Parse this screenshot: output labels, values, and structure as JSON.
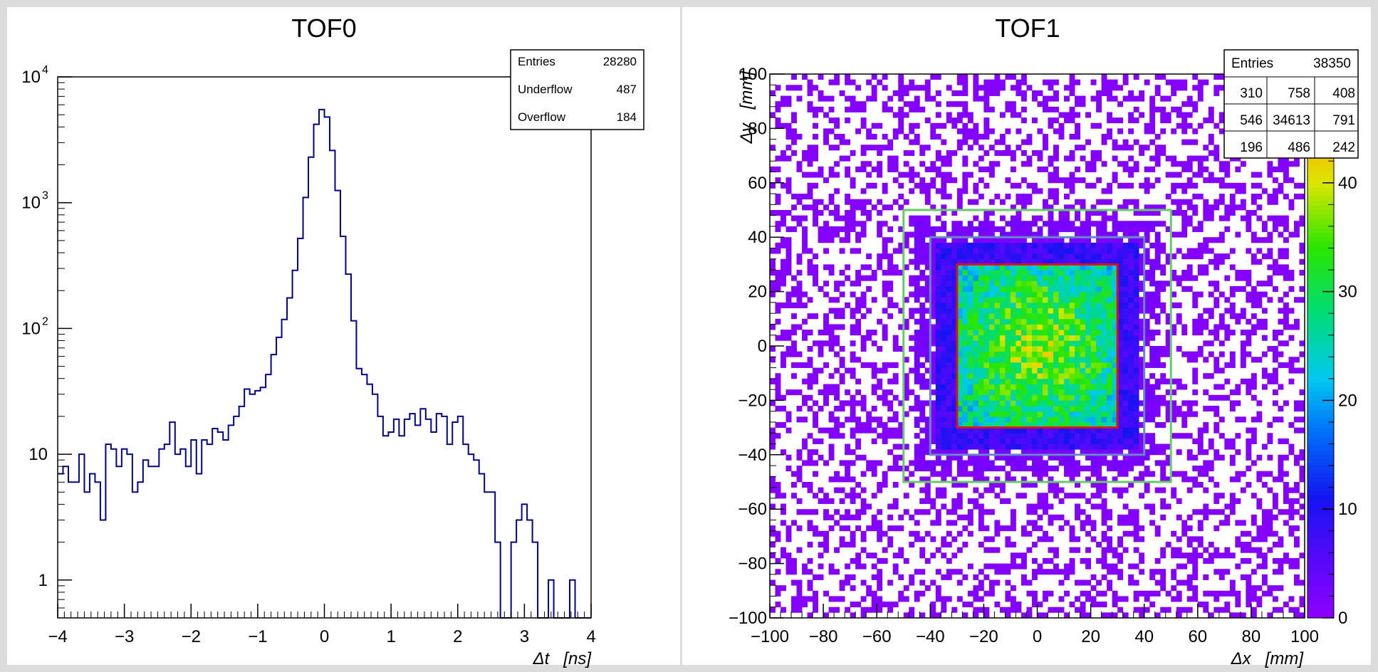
{
  "chart_data": [
    {
      "type": "histogram",
      "title": "TOF0",
      "xlabel": "Δt   [ns]",
      "ylabel": "",
      "xlim": [
        -4,
        4
      ],
      "ylim": [
        0.5,
        10000
      ],
      "yscale": "log",
      "xticks": [
        "−4",
        "−3",
        "−2",
        "−1",
        "0",
        "1",
        "2",
        "3",
        "4"
      ],
      "yticks": [
        {
          "value": 1,
          "label": "1"
        },
        {
          "value": 10,
          "label": "10"
        },
        {
          "value": 100,
          "label": "10",
          "exp": "2"
        },
        {
          "value": 1000,
          "label": "10",
          "exp": "3"
        },
        {
          "value": 10000,
          "label": "10",
          "exp": "4"
        }
      ],
      "bin_edges_start": -4,
      "bin_width": 0.08,
      "counts": [
        7,
        8,
        6,
        6,
        10,
        5,
        7,
        6,
        3,
        12,
        11,
        8,
        11,
        10,
        5,
        6,
        9,
        8,
        8,
        11,
        12,
        18,
        10,
        11,
        8,
        13,
        7,
        13,
        12,
        16,
        15,
        13,
        17,
        20,
        24,
        33,
        30,
        32,
        34,
        43,
        62,
        85,
        118,
        175,
        290,
        520,
        1100,
        2300,
        4200,
        5500,
        4800,
        2600,
        1250,
        540,
        270,
        115,
        48,
        43,
        36,
        30,
        20,
        14,
        15,
        19,
        14,
        19,
        21,
        17,
        23,
        19,
        15,
        21,
        20,
        12,
        18,
        20,
        12,
        10,
        9,
        7,
        5,
        5,
        2,
        0,
        0,
        2,
        3,
        4,
        3,
        2,
        0,
        0,
        1,
        0,
        0,
        0,
        1,
        0,
        0,
        0
      ],
      "stats": [
        {
          "label": "Entries",
          "value": "28280"
        },
        {
          "label": "Underflow",
          "value": "487"
        },
        {
          "label": "Overflow",
          "value": "184"
        }
      ],
      "color": "#00008b"
    },
    {
      "type": "heatmap",
      "title": "TOF1",
      "xlabel": "Δx   [mm]",
      "ylabel": "Δy   [mm]",
      "xlim": [
        -100,
        100
      ],
      "ylim": [
        -100,
        100
      ],
      "zlim": [
        0,
        50
      ],
      "xticks": [
        "−100",
        "−80",
        "−60",
        "−40",
        "−20",
        "0",
        "20",
        "40",
        "60",
        "80",
        "100"
      ],
      "yticks": [
        "−100",
        "−80",
        "−60",
        "−40",
        "−20",
        "0",
        "20",
        "40",
        "60",
        "80",
        "100"
      ],
      "zticks": [
        "0",
        "10",
        "20",
        "30",
        "40",
        "50"
      ],
      "bins": 100,
      "stats_header": {
        "label": "Entries",
        "value": "38350"
      },
      "stats_grid": [
        [
          "310",
          "758",
          "408"
        ],
        [
          "546",
          "34613",
          "791"
        ],
        [
          "196",
          "486",
          "242"
        ]
      ],
      "boxes": [
        {
          "name": "outer",
          "x": [
            -50,
            50
          ],
          "y": [
            -50,
            50
          ],
          "color": "#66cc66"
        },
        {
          "name": "middle",
          "x": [
            -40,
            40
          ],
          "y": [
            -40,
            40
          ],
          "color": "#6a85c8"
        },
        {
          "name": "inner",
          "x": [
            -30,
            30
          ],
          "y": [
            -30,
            30
          ],
          "color": "#e01010"
        }
      ]
    }
  ]
}
